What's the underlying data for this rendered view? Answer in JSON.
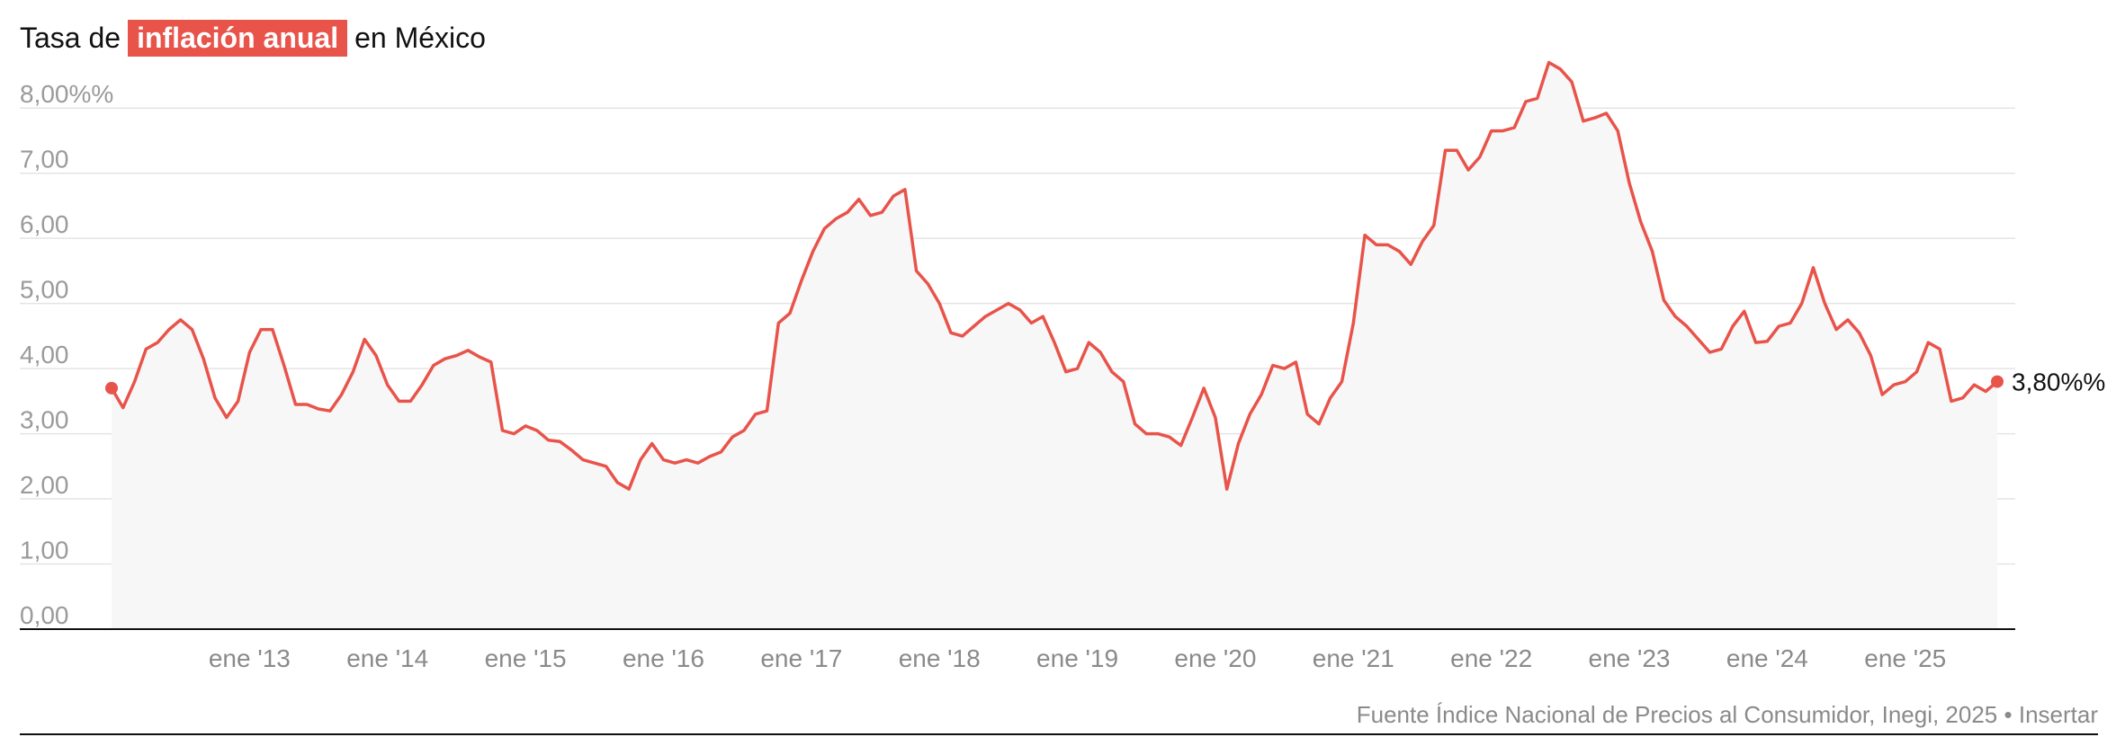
{
  "title": {
    "prefix": "Tasa de",
    "highlight": "inflación anual",
    "suffix": "en México"
  },
  "source": "Fuente Índice Nacional de Precios al Consumidor, Inegi, 2025",
  "insert_link": "Insertar",
  "colors": {
    "line": "#e8534a",
    "area": "#f7f7f7",
    "grid": "#e4e4e4",
    "axis": "#111111",
    "highlight": "#e8534a"
  },
  "chart_data": {
    "type": "area",
    "ylim": [
      0,
      8.5
    ],
    "y_ticks": [
      {
        "value": 0,
        "label": "0,00"
      },
      {
        "value": 1,
        "label": "1,00"
      },
      {
        "value": 2,
        "label": "2,00"
      },
      {
        "value": 3,
        "label": "3,00"
      },
      {
        "value": 4,
        "label": "4,00"
      },
      {
        "value": 5,
        "label": "5,00"
      },
      {
        "value": 6,
        "label": "6,00"
      },
      {
        "value": 7,
        "label": "7,00"
      },
      {
        "value": 8,
        "label": "8,00%%"
      }
    ],
    "x_ticks": [
      {
        "month_index": 12,
        "label": "ene '13"
      },
      {
        "month_index": 24,
        "label": "ene '14"
      },
      {
        "month_index": 36,
        "label": "ene '15"
      },
      {
        "month_index": 48,
        "label": "ene '16"
      },
      {
        "month_index": 60,
        "label": "ene '17"
      },
      {
        "month_index": 72,
        "label": "ene '18"
      },
      {
        "month_index": 84,
        "label": "ene '19"
      },
      {
        "month_index": 96,
        "label": "ene '20"
      },
      {
        "month_index": 108,
        "label": "ene '21"
      },
      {
        "month_index": 120,
        "label": "ene '22"
      },
      {
        "month_index": 132,
        "label": "ene '23"
      },
      {
        "month_index": 144,
        "label": "ene '24"
      },
      {
        "month_index": 156,
        "label": "ene '25"
      }
    ],
    "end_label": "3,80%%",
    "series": [
      {
        "values": [
          3.7,
          3.4,
          3.8,
          4.3,
          4.4,
          4.6,
          4.75,
          4.6,
          4.15,
          3.55,
          3.25,
          3.5,
          4.25,
          4.6,
          4.6,
          4.05,
          3.45,
          3.45,
          3.38,
          3.35,
          3.6,
          3.95,
          4.45,
          4.2,
          3.75,
          3.5,
          3.5,
          3.75,
          4.05,
          4.15,
          4.2,
          4.28,
          4.18,
          4.1,
          3.05,
          3.0,
          3.12,
          3.05,
          2.9,
          2.88,
          2.75,
          2.6,
          2.55,
          2.5,
          2.25,
          2.15,
          2.6,
          2.85,
          2.6,
          2.55,
          2.6,
          2.55,
          2.65,
          2.72,
          2.95,
          3.05,
          3.3,
          3.35,
          4.7,
          4.85,
          5.35,
          5.8,
          6.15,
          6.3,
          6.4,
          6.6,
          6.35,
          6.4,
          6.65,
          6.75,
          5.5,
          5.3,
          5.0,
          4.55,
          4.5,
          4.65,
          4.8,
          4.9,
          5.0,
          4.9,
          4.7,
          4.8,
          4.4,
          3.95,
          4.0,
          4.4,
          4.25,
          3.95,
          3.8,
          3.15,
          3.0,
          3.0,
          2.95,
          2.82,
          3.25,
          3.7,
          3.25,
          2.15,
          2.85,
          3.3,
          3.6,
          4.05,
          4.0,
          4.1,
          3.3,
          3.15,
          3.55,
          3.8,
          4.7,
          6.05,
          5.9,
          5.9,
          5.8,
          5.6,
          5.95,
          6.2,
          7.35,
          7.35,
          7.05,
          7.25,
          7.65,
          7.65,
          7.7,
          8.1,
          8.15,
          8.7,
          8.6,
          8.4,
          7.8,
          7.85,
          7.92,
          7.65,
          6.85,
          6.25,
          5.8,
          5.05,
          4.8,
          4.65,
          4.45,
          4.25,
          4.3,
          4.65,
          4.88,
          4.4,
          4.42,
          4.65,
          4.7,
          5.0,
          5.55,
          5.0,
          4.6,
          4.75,
          4.55,
          4.2,
          3.6,
          3.75,
          3.8,
          3.95,
          4.4,
          4.3,
          3.5,
          3.55,
          3.75,
          3.65,
          3.8
        ]
      }
    ]
  }
}
